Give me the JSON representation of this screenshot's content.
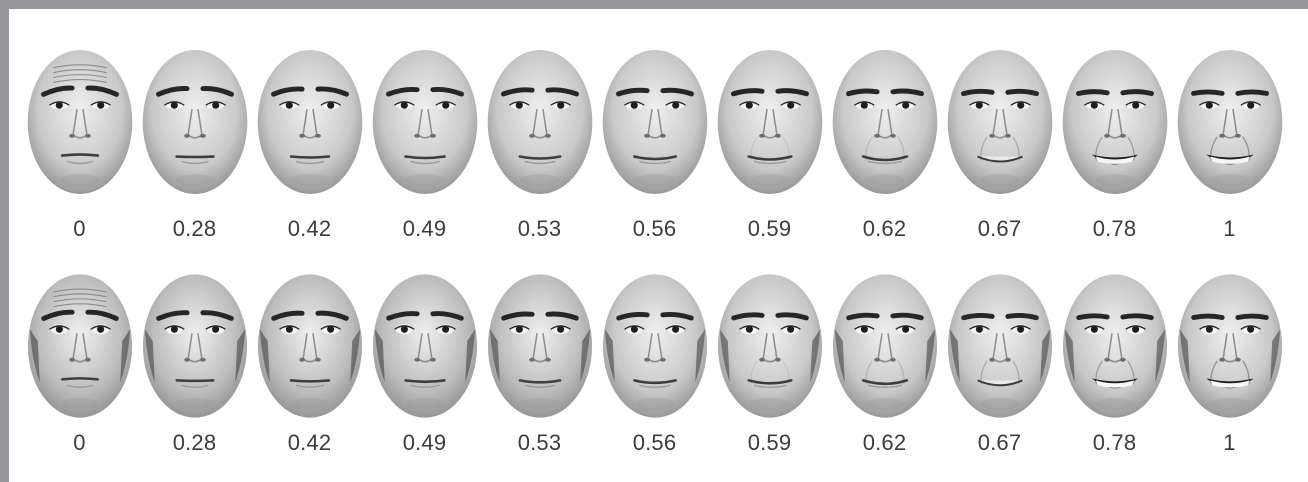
{
  "morph_rows": [
    {
      "row": "male",
      "icon": "male-face-morph-icon",
      "levels": [
        "0",
        "0.28",
        "0.42",
        "0.49",
        "0.53",
        "0.56",
        "0.59",
        "0.62",
        "0.67",
        "0.78",
        "1"
      ]
    },
    {
      "row": "female",
      "icon": "female-face-morph-icon",
      "levels": [
        "0",
        "0.28",
        "0.42",
        "0.49",
        "0.53",
        "0.56",
        "0.59",
        "0.62",
        "0.67",
        "0.78",
        "1"
      ]
    }
  ],
  "colors": {
    "frame": "#96969b",
    "label_text": "#3c3c3c",
    "face_light": "#e2e2e2",
    "face_dark": "#2f2f2f"
  }
}
